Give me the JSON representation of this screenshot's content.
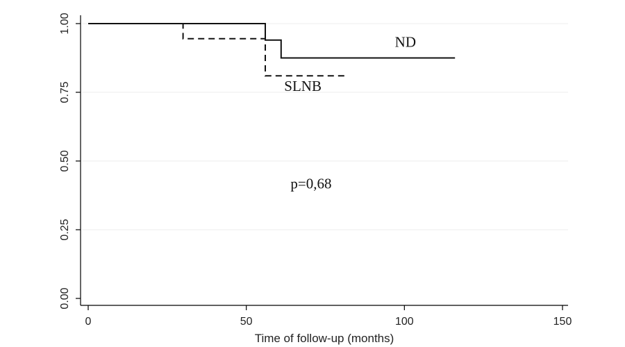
{
  "chart_data": {
    "type": "line",
    "xlabel": "Time of follow-up (months)",
    "ylabel": "",
    "xlim": [
      0,
      150
    ],
    "ylim": [
      0,
      1
    ],
    "xticks": [
      "0",
      "50",
      "100",
      "150"
    ],
    "xtick_values": [
      0,
      50,
      100,
      150
    ],
    "yticks": [
      "0.00",
      "0.25",
      "0.50",
      "0.75",
      "1.00"
    ],
    "ytick_values": [
      0,
      0.25,
      0.5,
      0.75,
      1
    ],
    "grid": "horizontal",
    "step": true,
    "series": [
      {
        "name": "ND",
        "style": "solid",
        "x": [
          0,
          56,
          56,
          61,
          61,
          116
        ],
        "y": [
          1.0,
          1.0,
          0.94,
          0.94,
          0.875,
          0.875
        ]
      },
      {
        "name": "SLNB",
        "style": "dashed",
        "x": [
          0,
          30,
          30,
          56,
          56,
          81
        ],
        "y": [
          1.0,
          1.0,
          0.945,
          0.945,
          0.81,
          0.81
        ]
      }
    ],
    "annotations": [
      {
        "text": "ND",
        "x": 97,
        "y": 0.915
      },
      {
        "text": "SLNB",
        "x": 62,
        "y": 0.755
      },
      {
        "text": "p=0,68",
        "x": 64,
        "y": 0.4
      }
    ]
  }
}
